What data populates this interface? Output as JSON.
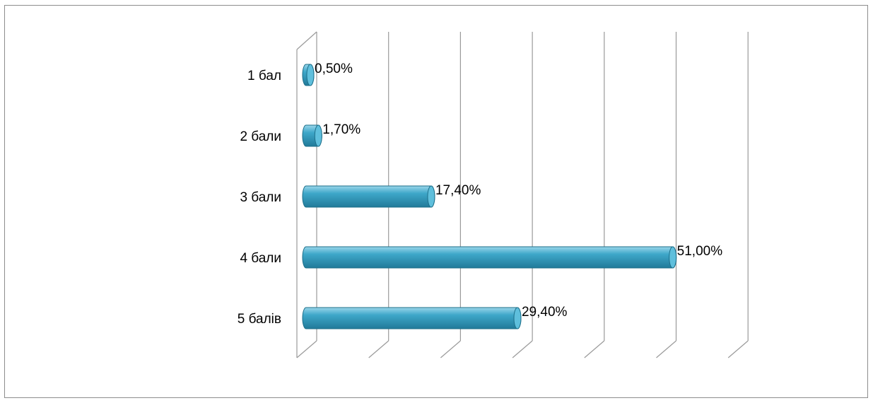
{
  "chart_data": {
    "type": "bar",
    "orientation": "horizontal",
    "categories": [
      "1 бал",
      "2 бали",
      "3 бали",
      "4 бали",
      "5 балів"
    ],
    "values": [
      0.5,
      1.7,
      17.4,
      51.0,
      29.4
    ],
    "data_labels": [
      "0,50%",
      "1,70%",
      "17,40%",
      "51,00%",
      "29,40%"
    ],
    "xlim": [
      0,
      60
    ],
    "grid": true,
    "legend": "none",
    "bar_color": "#3ea7c9"
  }
}
